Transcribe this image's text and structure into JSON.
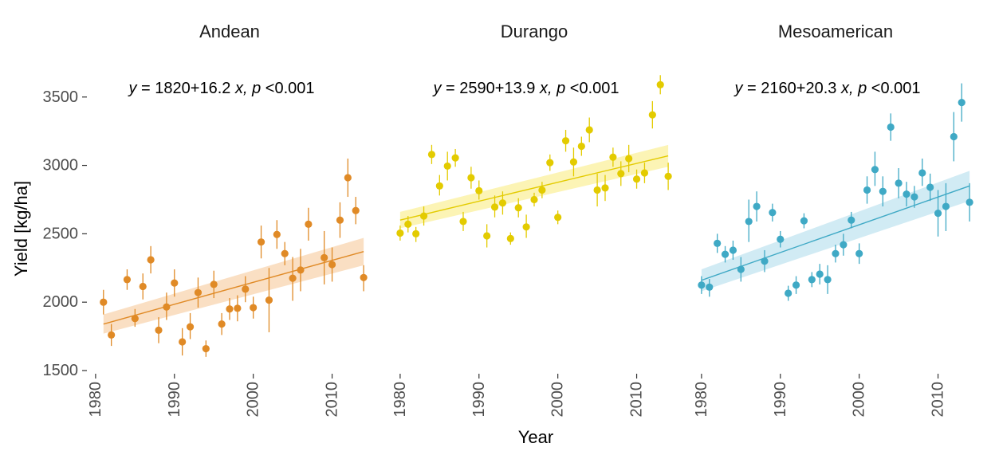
{
  "chart_data": {
    "type": "scatter",
    "xlabel": "Year",
    "ylabel": "Yield [kg/ha]",
    "xlim": [
      1979,
      2015
    ],
    "ylim": [
      1500,
      3720
    ],
    "x_ticks": [
      "1980",
      "1990",
      "2000",
      "2010"
    ],
    "y_ticks": [
      "1500",
      "2000",
      "2500",
      "3000",
      "3500"
    ],
    "grid": false,
    "panels": [
      {
        "title": "Andean",
        "color": "#E08A26",
        "band_color": "#F9D9B9",
        "equation": {
          "y": "y",
          "eq": "=",
          "intercept": "1820",
          "plus": "+",
          "slope": "16.2",
          "x": "x,",
          "p": "p",
          "lt": "<",
          "pval": "0.001"
        },
        "fit": {
          "x": [
            1981,
            2014
          ],
          "y": [
            1840,
            2370
          ],
          "band_lower": [
            1770,
            2270
          ],
          "band_upper": [
            1910,
            2470
          ]
        },
        "points": [
          {
            "x": 1981,
            "y": 2000,
            "lo": 1910,
            "hi": 2090
          },
          {
            "x": 1982,
            "y": 1760,
            "lo": 1680,
            "hi": 1840
          },
          {
            "x": 1984,
            "y": 2165,
            "lo": 2090,
            "hi": 2240
          },
          {
            "x": 1985,
            "y": 1880,
            "lo": 1820,
            "hi": 1950
          },
          {
            "x": 1986,
            "y": 2115,
            "lo": 2020,
            "hi": 2210
          },
          {
            "x": 1987,
            "y": 2310,
            "lo": 2210,
            "hi": 2410
          },
          {
            "x": 1988,
            "y": 1795,
            "lo": 1700,
            "hi": 1890
          },
          {
            "x": 1989,
            "y": 1965,
            "lo": 1870,
            "hi": 2070
          },
          {
            "x": 1990,
            "y": 2140,
            "lo": 2040,
            "hi": 2240
          },
          {
            "x": 1991,
            "y": 1710,
            "lo": 1610,
            "hi": 1810
          },
          {
            "x": 1992,
            "y": 1820,
            "lo": 1730,
            "hi": 1920
          },
          {
            "x": 1993,
            "y": 2070,
            "lo": 1960,
            "hi": 2180
          },
          {
            "x": 1994,
            "y": 1660,
            "lo": 1600,
            "hi": 1720
          },
          {
            "x": 1995,
            "y": 2130,
            "lo": 2030,
            "hi": 2230
          },
          {
            "x": 1996,
            "y": 1840,
            "lo": 1760,
            "hi": 1920
          },
          {
            "x": 1997,
            "y": 1950,
            "lo": 1870,
            "hi": 2030
          },
          {
            "x": 1998,
            "y": 1955,
            "lo": 1860,
            "hi": 2050
          },
          {
            "x": 1999,
            "y": 2095,
            "lo": 2000,
            "hi": 2190
          },
          {
            "x": 2000,
            "y": 1960,
            "lo": 1880,
            "hi": 2040
          },
          {
            "x": 2001,
            "y": 2440,
            "lo": 2320,
            "hi": 2560
          },
          {
            "x": 2002,
            "y": 2015,
            "lo": 1780,
            "hi": 2250
          },
          {
            "x": 2003,
            "y": 2495,
            "lo": 2390,
            "hi": 2600
          },
          {
            "x": 2004,
            "y": 2355,
            "lo": 2270,
            "hi": 2440
          },
          {
            "x": 2005,
            "y": 2175,
            "lo": 2010,
            "hi": 2330
          },
          {
            "x": 2006,
            "y": 2235,
            "lo": 2080,
            "hi": 2390
          },
          {
            "x": 2007,
            "y": 2570,
            "lo": 2450,
            "hi": 2690
          },
          {
            "x": 2009,
            "y": 2325,
            "lo": 2130,
            "hi": 2520
          },
          {
            "x": 2010,
            "y": 2275,
            "lo": 2150,
            "hi": 2400
          },
          {
            "x": 2011,
            "y": 2600,
            "lo": 2470,
            "hi": 2730
          },
          {
            "x": 2012,
            "y": 2910,
            "lo": 2770,
            "hi": 3050
          },
          {
            "x": 2013,
            "y": 2670,
            "lo": 2570,
            "hi": 2770
          },
          {
            "x": 2014,
            "y": 2180,
            "lo": 2080,
            "hi": 2270
          }
        ]
      },
      {
        "title": "Durango",
        "color": "#E3CB00",
        "band_color": "#FBF2A8",
        "equation": {
          "y": "y",
          "eq": "=",
          "intercept": "2590",
          "plus": "+",
          "slope": "13.9",
          "x": "x,",
          "p": "p",
          "lt": "<",
          "pval": "0.001"
        },
        "fit": {
          "x": [
            1980,
            2014
          ],
          "y": [
            2600,
            3070
          ],
          "band_lower": [
            2540,
            2990
          ],
          "band_upper": [
            2660,
            3150
          ]
        },
        "points": [
          {
            "x": 1980,
            "y": 2505,
            "lo": 2450,
            "hi": 2560
          },
          {
            "x": 1981,
            "y": 2570,
            "lo": 2510,
            "hi": 2630
          },
          {
            "x": 1982,
            "y": 2500,
            "lo": 2440,
            "hi": 2550
          },
          {
            "x": 1983,
            "y": 2630,
            "lo": 2560,
            "hi": 2700
          },
          {
            "x": 1984,
            "y": 3080,
            "lo": 3010,
            "hi": 3150
          },
          {
            "x": 1985,
            "y": 2850,
            "lo": 2780,
            "hi": 2930
          },
          {
            "x": 1986,
            "y": 2995,
            "lo": 2890,
            "hi": 3100
          },
          {
            "x": 1987,
            "y": 3055,
            "lo": 2990,
            "hi": 3120
          },
          {
            "x": 1988,
            "y": 2590,
            "lo": 2520,
            "hi": 2660
          },
          {
            "x": 1989,
            "y": 2910,
            "lo": 2830,
            "hi": 2990
          },
          {
            "x": 1990,
            "y": 2815,
            "lo": 2750,
            "hi": 2890
          },
          {
            "x": 1991,
            "y": 2485,
            "lo": 2400,
            "hi": 2570
          },
          {
            "x": 1992,
            "y": 2695,
            "lo": 2620,
            "hi": 2780
          },
          {
            "x": 1993,
            "y": 2725,
            "lo": 2640,
            "hi": 2810
          },
          {
            "x": 1994,
            "y": 2465,
            "lo": 2420,
            "hi": 2510
          },
          {
            "x": 1995,
            "y": 2690,
            "lo": 2620,
            "hi": 2760
          },
          {
            "x": 1996,
            "y": 2550,
            "lo": 2470,
            "hi": 2640
          },
          {
            "x": 1997,
            "y": 2750,
            "lo": 2700,
            "hi": 2800
          },
          {
            "x": 1998,
            "y": 2820,
            "lo": 2760,
            "hi": 2880
          },
          {
            "x": 1999,
            "y": 3020,
            "lo": 2960,
            "hi": 3080
          },
          {
            "x": 2000,
            "y": 2620,
            "lo": 2570,
            "hi": 2670
          },
          {
            "x": 2001,
            "y": 3180,
            "lo": 3100,
            "hi": 3260
          },
          {
            "x": 2002,
            "y": 3025,
            "lo": 2920,
            "hi": 3130
          },
          {
            "x": 2003,
            "y": 3140,
            "lo": 3070,
            "hi": 3210
          },
          {
            "x": 2004,
            "y": 3260,
            "lo": 3170,
            "hi": 3350
          },
          {
            "x": 2005,
            "y": 2820,
            "lo": 2700,
            "hi": 2940
          },
          {
            "x": 2006,
            "y": 2835,
            "lo": 2740,
            "hi": 2930
          },
          {
            "x": 2007,
            "y": 3060,
            "lo": 2990,
            "hi": 3130
          },
          {
            "x": 2008,
            "y": 2940,
            "lo": 2850,
            "hi": 3030
          },
          {
            "x": 2009,
            "y": 3050,
            "lo": 2950,
            "hi": 3150
          },
          {
            "x": 2010,
            "y": 2900,
            "lo": 2830,
            "hi": 2970
          },
          {
            "x": 2011,
            "y": 2945,
            "lo": 2870,
            "hi": 3020
          },
          {
            "x": 2012,
            "y": 3370,
            "lo": 3270,
            "hi": 3470
          },
          {
            "x": 2013,
            "y": 3590,
            "lo": 3520,
            "hi": 3660
          },
          {
            "x": 2014,
            "y": 2920,
            "lo": 2820,
            "hi": 3020
          }
        ]
      },
      {
        "title": "Mesoamerican",
        "color": "#3FA9C5",
        "band_color": "#C9E8F2",
        "equation": {
          "y": "y",
          "eq": "=",
          "intercept": "2160",
          "plus": "+",
          "slope": "20.3",
          "x": "x,",
          "p": "p",
          "lt": "<",
          "pval": "0.001"
        },
        "fit": {
          "x": [
            1980,
            2014
          ],
          "y": [
            2160,
            2850
          ],
          "band_lower": [
            2080,
            2740
          ],
          "band_upper": [
            2240,
            2960
          ]
        },
        "points": [
          {
            "x": 1980,
            "y": 2125,
            "lo": 2060,
            "hi": 2190
          },
          {
            "x": 1981,
            "y": 2110,
            "lo": 2040,
            "hi": 2170
          },
          {
            "x": 1982,
            "y": 2430,
            "lo": 2360,
            "hi": 2500
          },
          {
            "x": 1983,
            "y": 2350,
            "lo": 2290,
            "hi": 2410
          },
          {
            "x": 1984,
            "y": 2380,
            "lo": 2310,
            "hi": 2450
          },
          {
            "x": 1985,
            "y": 2240,
            "lo": 2150,
            "hi": 2330
          },
          {
            "x": 1986,
            "y": 2590,
            "lo": 2440,
            "hi": 2750
          },
          {
            "x": 1987,
            "y": 2700,
            "lo": 2590,
            "hi": 2810
          },
          {
            "x": 1988,
            "y": 2300,
            "lo": 2220,
            "hi": 2380
          },
          {
            "x": 1989,
            "y": 2655,
            "lo": 2590,
            "hi": 2720
          },
          {
            "x": 1990,
            "y": 2460,
            "lo": 2400,
            "hi": 2520
          },
          {
            "x": 1991,
            "y": 2065,
            "lo": 2010,
            "hi": 2120
          },
          {
            "x": 1992,
            "y": 2125,
            "lo": 2060,
            "hi": 2190
          },
          {
            "x": 1993,
            "y": 2595,
            "lo": 2540,
            "hi": 2650
          },
          {
            "x": 1994,
            "y": 2165,
            "lo": 2110,
            "hi": 2220
          },
          {
            "x": 1995,
            "y": 2205,
            "lo": 2130,
            "hi": 2280
          },
          {
            "x": 1996,
            "y": 2165,
            "lo": 2060,
            "hi": 2270
          },
          {
            "x": 1997,
            "y": 2355,
            "lo": 2290,
            "hi": 2420
          },
          {
            "x": 1998,
            "y": 2420,
            "lo": 2340,
            "hi": 2500
          },
          {
            "x": 1999,
            "y": 2600,
            "lo": 2540,
            "hi": 2660
          },
          {
            "x": 2000,
            "y": 2355,
            "lo": 2280,
            "hi": 2430
          },
          {
            "x": 2001,
            "y": 2820,
            "lo": 2720,
            "hi": 2920
          },
          {
            "x": 2002,
            "y": 2970,
            "lo": 2850,
            "hi": 3100
          },
          {
            "x": 2003,
            "y": 2810,
            "lo": 2700,
            "hi": 2920
          },
          {
            "x": 2004,
            "y": 3280,
            "lo": 3180,
            "hi": 3380
          },
          {
            "x": 2005,
            "y": 2870,
            "lo": 2760,
            "hi": 2980
          },
          {
            "x": 2006,
            "y": 2790,
            "lo": 2700,
            "hi": 2880
          },
          {
            "x": 2007,
            "y": 2770,
            "lo": 2690,
            "hi": 2850
          },
          {
            "x": 2008,
            "y": 2945,
            "lo": 2850,
            "hi": 3050
          },
          {
            "x": 2009,
            "y": 2840,
            "lo": 2740,
            "hi": 2940
          },
          {
            "x": 2010,
            "y": 2650,
            "lo": 2480,
            "hi": 2820
          },
          {
            "x": 2011,
            "y": 2700,
            "lo": 2520,
            "hi": 2870
          },
          {
            "x": 2012,
            "y": 3210,
            "lo": 3030,
            "hi": 3390
          },
          {
            "x": 2013,
            "y": 3460,
            "lo": 3320,
            "hi": 3600
          },
          {
            "x": 2014,
            "y": 2730,
            "lo": 2590,
            "hi": 2870
          }
        ]
      }
    ]
  }
}
